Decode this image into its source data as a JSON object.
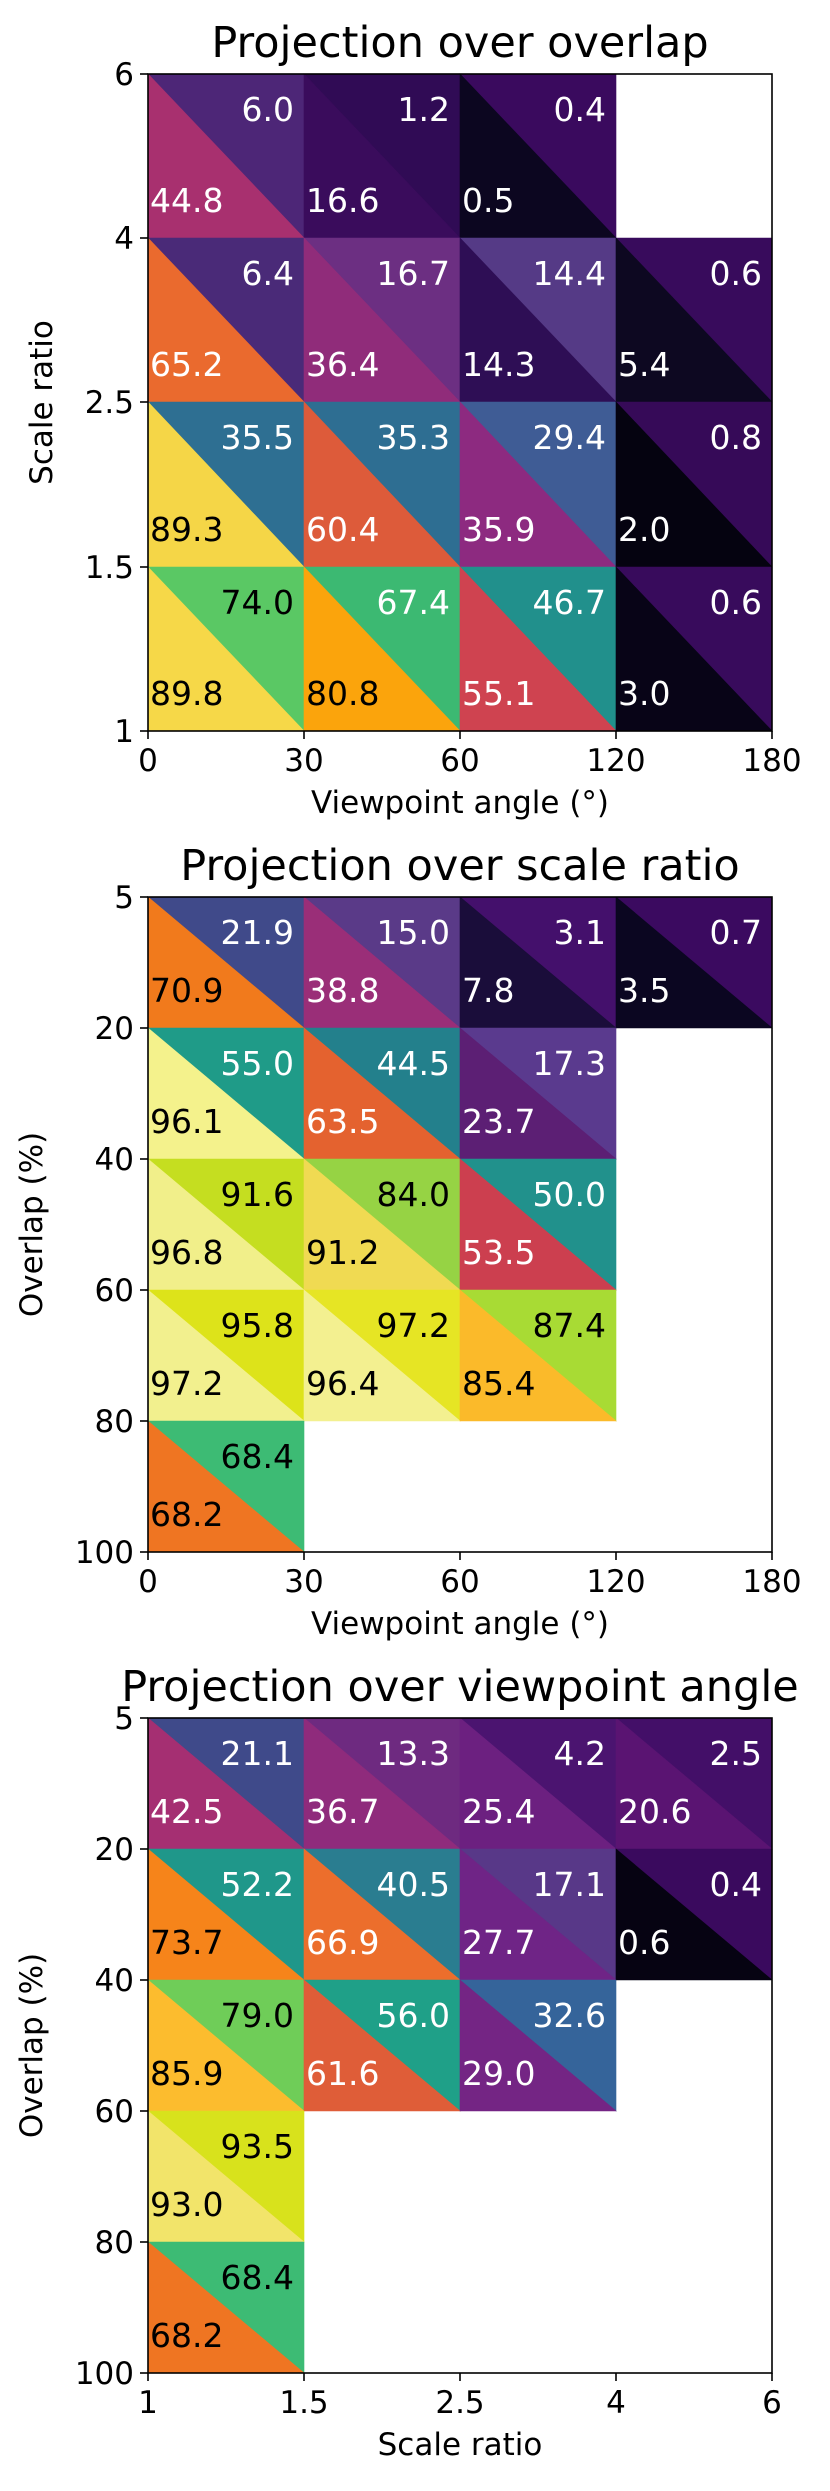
{
  "chart_data": [
    {
      "type": "heatmap",
      "title": "Projection over overlap",
      "xlabel": "Viewpoint angle (°)",
      "ylabel": "Scale ratio",
      "xticks": [
        "0",
        "30",
        "60",
        "120",
        "180"
      ],
      "yticks": [
        "6",
        "4",
        "2.5",
        "1.5",
        "1"
      ],
      "xcats": [
        "0-30",
        "30-60",
        "60-120",
        "120-180"
      ],
      "ycats": [
        "4-6",
        "2.5-4",
        "1.5-2.5",
        "1-1.5"
      ],
      "cells": [
        {
          "col": 0,
          "row": 0,
          "upper": "6.0",
          "lower": "44.8"
        },
        {
          "col": 1,
          "row": 0,
          "upper": "1.2",
          "lower": "16.6"
        },
        {
          "col": 2,
          "row": 0,
          "upper": "0.4",
          "lower": "0.5"
        },
        {
          "col": 0,
          "row": 1,
          "upper": "6.4",
          "lower": "65.2"
        },
        {
          "col": 1,
          "row": 1,
          "upper": "16.7",
          "lower": "36.4"
        },
        {
          "col": 2,
          "row": 1,
          "upper": "14.4",
          "lower": "14.3"
        },
        {
          "col": 3,
          "row": 1,
          "upper": "0.6",
          "lower": "5.4"
        },
        {
          "col": 0,
          "row": 2,
          "upper": "35.5",
          "lower": "89.3"
        },
        {
          "col": 1,
          "row": 2,
          "upper": "35.3",
          "lower": "60.4"
        },
        {
          "col": 2,
          "row": 2,
          "upper": "29.4",
          "lower": "35.9"
        },
        {
          "col": 3,
          "row": 2,
          "upper": "0.8",
          "lower": "2.0"
        },
        {
          "col": 0,
          "row": 3,
          "upper": "74.0",
          "lower": "89.8"
        },
        {
          "col": 1,
          "row": 3,
          "upper": "67.4",
          "lower": "80.8"
        },
        {
          "col": 2,
          "row": 3,
          "upper": "46.7",
          "lower": "55.1"
        },
        {
          "col": 3,
          "row": 3,
          "upper": "0.6",
          "lower": "3.0"
        }
      ]
    },
    {
      "type": "heatmap",
      "title": "Projection over scale ratio",
      "xlabel": "Viewpoint angle (°)",
      "ylabel": "Overlap (%)",
      "xticks": [
        "0",
        "30",
        "60",
        "120",
        "180"
      ],
      "yticks": [
        "5",
        "20",
        "40",
        "60",
        "80",
        "100"
      ],
      "xcats": [
        "0-30",
        "30-60",
        "60-120",
        "120-180"
      ],
      "ycats": [
        "5-20",
        "20-40",
        "40-60",
        "60-80",
        "80-100"
      ],
      "cells": [
        {
          "col": 0,
          "row": 0,
          "upper": "21.9",
          "lower": "70.9"
        },
        {
          "col": 1,
          "row": 0,
          "upper": "15.0",
          "lower": "38.8"
        },
        {
          "col": 2,
          "row": 0,
          "upper": "3.1",
          "lower": "7.8"
        },
        {
          "col": 3,
          "row": 0,
          "upper": "0.7",
          "lower": "3.5"
        },
        {
          "col": 0,
          "row": 1,
          "upper": "55.0",
          "lower": "96.1"
        },
        {
          "col": 1,
          "row": 1,
          "upper": "44.5",
          "lower": "63.5"
        },
        {
          "col": 2,
          "row": 1,
          "upper": "17.3",
          "lower": "23.7"
        },
        {
          "col": 0,
          "row": 2,
          "upper": "91.6",
          "lower": "96.8"
        },
        {
          "col": 1,
          "row": 2,
          "upper": "84.0",
          "lower": "91.2"
        },
        {
          "col": 2,
          "row": 2,
          "upper": "50.0",
          "lower": "53.5"
        },
        {
          "col": 0,
          "row": 3,
          "upper": "95.8",
          "lower": "97.2"
        },
        {
          "col": 1,
          "row": 3,
          "upper": "97.2",
          "lower": "96.4"
        },
        {
          "col": 2,
          "row": 3,
          "upper": "87.4",
          "lower": "85.4"
        },
        {
          "col": 0,
          "row": 4,
          "upper": "68.4",
          "lower": "68.2"
        }
      ]
    },
    {
      "type": "heatmap",
      "title": "Projection over viewpoint angle",
      "xlabel": "Scale ratio",
      "ylabel": "Overlap (%)",
      "xticks": [
        "1",
        "1.5",
        "2.5",
        "4",
        "6"
      ],
      "yticks": [
        "5",
        "20",
        "40",
        "60",
        "80",
        "100"
      ],
      "xcats": [
        "1-1.5",
        "1.5-2.5",
        "2.5-4",
        "4-6"
      ],
      "ycats": [
        "5-20",
        "20-40",
        "40-60",
        "60-80",
        "80-100"
      ],
      "cells": [
        {
          "col": 0,
          "row": 0,
          "upper": "21.1",
          "lower": "42.5"
        },
        {
          "col": 1,
          "row": 0,
          "upper": "13.3",
          "lower": "36.7"
        },
        {
          "col": 2,
          "row": 0,
          "upper": "4.2",
          "lower": "25.4"
        },
        {
          "col": 3,
          "row": 0,
          "upper": "2.5",
          "lower": "20.6"
        },
        {
          "col": 0,
          "row": 1,
          "upper": "52.2",
          "lower": "73.7"
        },
        {
          "col": 1,
          "row": 1,
          "upper": "40.5",
          "lower": "66.9"
        },
        {
          "col": 2,
          "row": 1,
          "upper": "17.1",
          "lower": "27.7"
        },
        {
          "col": 3,
          "row": 1,
          "upper": "0.4",
          "lower": "0.6"
        },
        {
          "col": 0,
          "row": 2,
          "upper": "79.0",
          "lower": "85.9"
        },
        {
          "col": 1,
          "row": 2,
          "upper": "56.0",
          "lower": "61.6"
        },
        {
          "col": 2,
          "row": 2,
          "upper": "32.6",
          "lower": "29.0"
        },
        {
          "col": 0,
          "row": 3,
          "upper": "93.5",
          "lower": "93.0"
        },
        {
          "col": 0,
          "row": 4,
          "upper": "68.4",
          "lower": "68.2"
        }
      ]
    }
  ],
  "upper_palette": {
    "0.4": "#3a0a5e",
    "0.6": "#380b5c",
    "0.7": "#3b0a60",
    "0.8": "#360a58",
    "1.2": "#300b55",
    "2.5": "#430f68",
    "3.1": "#44106c",
    "4.2": "#4b1470",
    "6.0": "#4d2677",
    "6.4": "#4a2a78",
    "13.3": "#6e2a80",
    "14.4": "#553a86",
    "15.0": "#5a3a88",
    "16.7": "#6c2f82",
    "17.1": "#583888",
    "17.3": "#5a3a8e",
    "21.1": "#3f4a8a",
    "21.9": "#404a8a",
    "29.4": "#3f5c95",
    "32.6": "#35649a",
    "35.3": "#2e6e92",
    "35.5": "#2e6f92",
    "40.5": "#2a7d90",
    "44.5": "#23808c",
    "46.7": "#21908c",
    "50.0": "#21918c",
    "52.2": "#1f978a",
    "55.0": "#1f9b88",
    "56.0": "#1fa088",
    "67.4": "#3cb972",
    "68.4": "#3dbb74",
    "74.0": "#5ac864",
    "79.0": "#6fcd58",
    "84.0": "#96d344",
    "87.4": "#a8db34",
    "91.6": "#c5de20",
    "93.5": "#d8e21c",
    "95.8": "#dde31a",
    "97.2": "#e6e524"
  },
  "lower_palette": {
    "0.5": "#0c0620",
    "0.6": "#060312",
    "2.0": "#050310",
    "3.0": "#080417",
    "3.5": "#0b0621",
    "5.4": "#0d0821",
    "7.8": "#1a0d3a",
    "14.3": "#2e0e55",
    "16.6": "#3a0c5c",
    "20.6": "#5a1472",
    "23.7": "#5c1f74",
    "25.4": "#6c2080",
    "27.7": "#6f2486",
    "29.0": "#742584",
    "35.9": "#8d2a80",
    "36.4": "#902c7a",
    "36.7": "#8f2b7c",
    "38.8": "#9a2e78",
    "42.5": "#a52f72",
    "44.8": "#a8306f",
    "53.5": "#cc3f4f",
    "55.1": "#cf4350",
    "60.4": "#dd5b3a",
    "61.6": "#df5d38",
    "63.5": "#e4622f",
    "65.2": "#ea6a2e",
    "66.9": "#ec6e2c",
    "68.2": "#ef7522",
    "70.9": "#f17a1c",
    "73.7": "#f6841a",
    "80.8": "#fba40c",
    "85.4": "#fbba2a",
    "85.9": "#fcbc2e",
    "89.3": "#f5d647",
    "89.8": "#f6d848",
    "91.2": "#f0da52",
    "93.0": "#f2e46a",
    "96.1": "#f4f28c",
    "96.4": "#f3f090",
    "96.8": "#f1ef8a",
    "97.2": "#f2f08e"
  }
}
